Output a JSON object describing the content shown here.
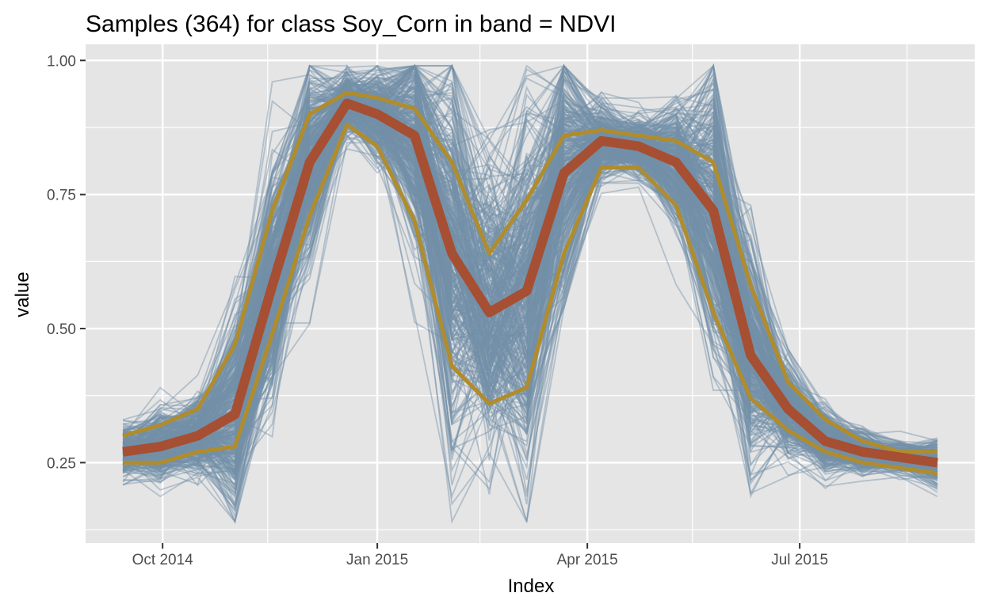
{
  "chart_data": {
    "type": "line",
    "title": "Samples (364) for class Soy_Corn in band = NDVI",
    "xlabel": "Index",
    "ylabel": "value",
    "x_ticks": [
      "Oct 2014",
      "Jan 2015",
      "Apr 2015",
      "Jul 2015"
    ],
    "y_ticks": [
      "0.25",
      "0.50",
      "0.75",
      "1.00"
    ],
    "ylim": [
      0.1,
      1.03
    ],
    "xlim": [
      "2014-08-29",
      "2015-09-14"
    ],
    "grid": true,
    "sample_count": 364,
    "x": [
      "2014-09-14",
      "2014-09-30",
      "2014-10-16",
      "2014-11-01",
      "2014-11-17",
      "2014-12-03",
      "2014-12-19",
      "2015-01-01",
      "2015-01-17",
      "2015-02-02",
      "2015-02-18",
      "2015-03-06",
      "2015-03-22",
      "2015-04-07",
      "2015-04-23",
      "2015-05-09",
      "2015-05-25",
      "2015-06-10",
      "2015-06-26",
      "2015-07-12",
      "2015-07-28",
      "2015-08-13",
      "2015-08-29"
    ],
    "series": [
      {
        "name": "",
        "role": "median",
        "color": "#a64f32",
        "values": [
          0.27,
          0.28,
          0.3,
          0.34,
          0.58,
          0.81,
          0.92,
          0.9,
          0.86,
          0.64,
          0.53,
          0.57,
          0.79,
          0.85,
          0.84,
          0.81,
          0.72,
          0.45,
          0.35,
          0.29,
          0.27,
          0.26,
          0.25
        ]
      },
      {
        "name": "",
        "role": "upper-quartile",
        "color": "#b08c2c",
        "values": [
          0.3,
          0.32,
          0.35,
          0.47,
          0.72,
          0.9,
          0.94,
          0.93,
          0.91,
          0.81,
          0.64,
          0.74,
          0.86,
          0.87,
          0.86,
          0.85,
          0.81,
          0.58,
          0.4,
          0.33,
          0.29,
          0.27,
          0.27
        ]
      },
      {
        "name": "",
        "role": "lower-quartile",
        "color": "#b08c2c",
        "values": [
          0.25,
          0.25,
          0.27,
          0.28,
          0.49,
          0.71,
          0.88,
          0.84,
          0.7,
          0.43,
          0.36,
          0.39,
          0.64,
          0.8,
          0.8,
          0.73,
          0.53,
          0.37,
          0.31,
          0.27,
          0.25,
          0.24,
          0.23
        ]
      }
    ],
    "colors": {
      "samples": "#7390a8",
      "panel_background": "#e5e5e5",
      "grid": "#ffffff"
    }
  }
}
